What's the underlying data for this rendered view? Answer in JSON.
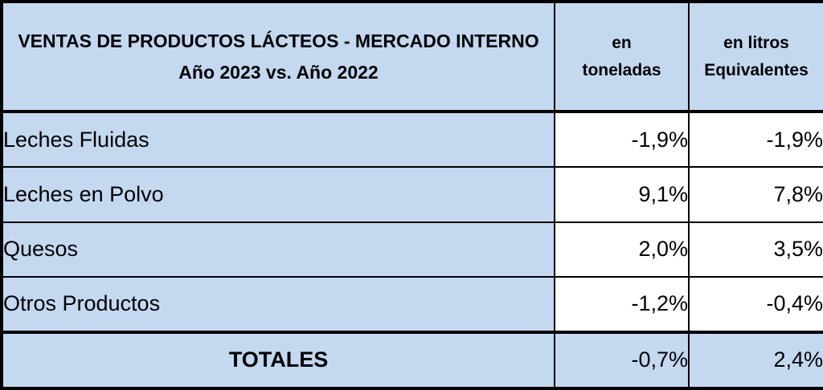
{
  "colors": {
    "cell_blue": "#C4D8F0",
    "cell_white": "#FFFFFF",
    "border_black": "#000000",
    "text_black": "#000000"
  },
  "header": {
    "title_line1": "VENTAS DE PRODUCTOS LÁCTEOS - MERCADO INTERNO",
    "title_line2": "Año 2023 vs. Año 2022",
    "col_toneladas_line1": "en",
    "col_toneladas_line2": "toneladas",
    "col_litros_line1": "en litros",
    "col_litros_line2": "Equivalentes"
  },
  "rows": [
    {
      "label": "Leches Fluidas",
      "toneladas": "-1,9%",
      "litros": "-1,9%"
    },
    {
      "label": "Leches en Polvo",
      "toneladas": "9,1%",
      "litros": "7,8%"
    },
    {
      "label": "Quesos",
      "toneladas": "2,0%",
      "litros": "3,5%"
    },
    {
      "label": "Otros Productos",
      "toneladas": "-1,2%",
      "litros": "-0,4%"
    }
  ],
  "totals": {
    "label": "TOTALES",
    "toneladas": "-0,7%",
    "litros": "2,4%"
  },
  "chart_data": {
    "type": "table",
    "title": "VENTAS DE PRODUCTOS LÁCTEOS - MERCADO INTERNO Año 2023 vs. Año 2022",
    "columns": [
      "en toneladas",
      "en litros Equivalentes"
    ],
    "categories": [
      "Leches Fluidas",
      "Leches en Polvo",
      "Quesos",
      "Otros Productos",
      "TOTALES"
    ],
    "series": [
      {
        "name": "en toneladas",
        "values": [
          "-1,9%",
          "9,1%",
          "2,0%",
          "-1,2%",
          "-0,7%"
        ]
      },
      {
        "name": "en litros Equivalentes",
        "values": [
          "-1,9%",
          "7,8%",
          "3,5%",
          "-0,4%",
          "2,4%"
        ]
      }
    ],
    "value_format": "percent, comma decimal separator",
    "legend_position": "none",
    "grid": "full black cell borders"
  }
}
